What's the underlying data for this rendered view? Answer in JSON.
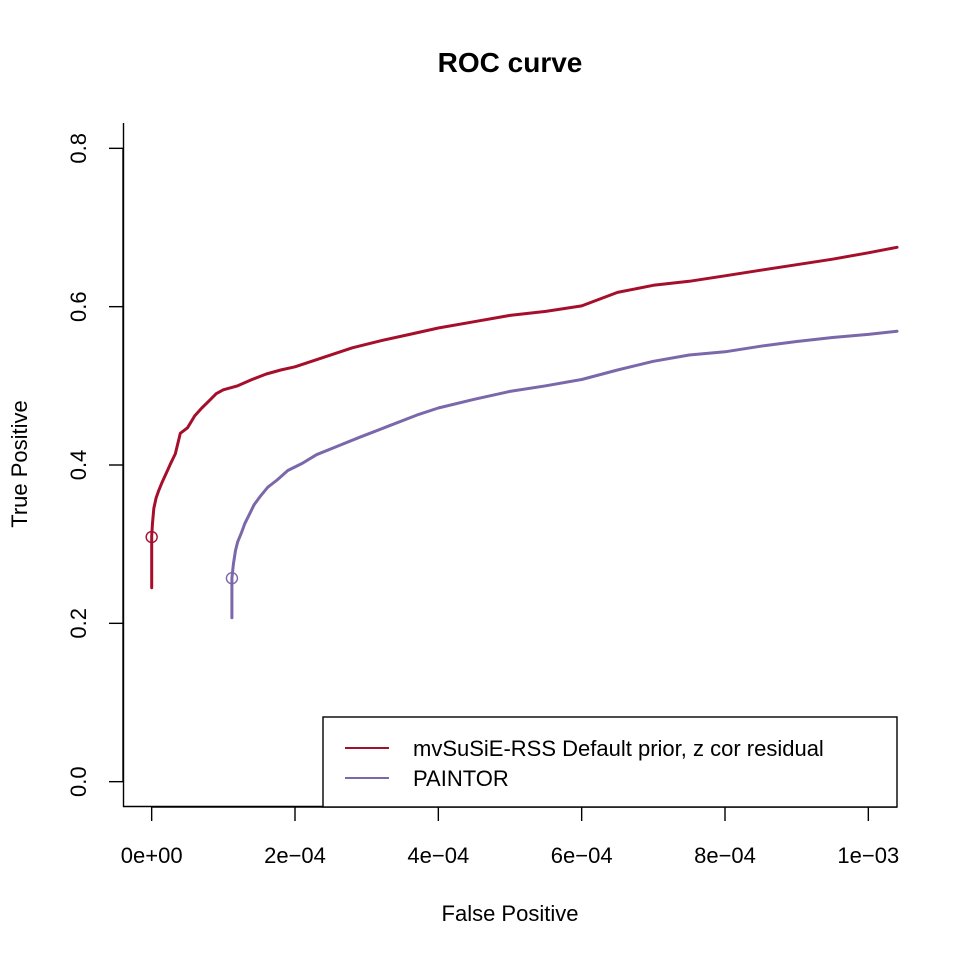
{
  "chart_data": {
    "type": "line",
    "title": "ROC curve",
    "xlabel": "False Positive",
    "ylabel": "True Positive",
    "xlim": [
      -4e-05,
      0.00104
    ],
    "ylim": [
      -0.032,
      0.832
    ],
    "xticks": [
      0,
      0.0002,
      0.0004,
      0.0006,
      0.0008,
      0.001
    ],
    "xtick_labels": [
      "0e+00",
      "2e−04",
      "4e−04",
      "6e−04",
      "8e−04",
      "1e−03"
    ],
    "yticks": [
      0.0,
      0.2,
      0.4,
      0.6,
      0.8
    ],
    "ytick_labels": [
      "0.0",
      "0.2",
      "0.4",
      "0.6",
      "0.8"
    ],
    "grid": false,
    "legend_position": "bottom-right",
    "series": [
      {
        "name": "mvSuSiE-RSS Default prior, z cor residual",
        "color": "#A50F2B",
        "x": [
          0,
          0,
          0,
          1e-06,
          3e-06,
          6e-06,
          1e-05,
          1.5e-05,
          2e-05,
          2.6e-05,
          3.3e-05,
          4e-05,
          5e-05,
          6e-05,
          7e-05,
          8e-05,
          9e-05,
          0.0001,
          0.00012,
          0.00014,
          0.00016,
          0.00018,
          0.0002,
          0.00024,
          0.00028,
          0.00032,
          0.00036,
          0.0004,
          0.00045,
          0.0005,
          0.00055,
          0.0006,
          0.00065,
          0.0007,
          0.00075,
          0.0008,
          0.00085,
          0.0009,
          0.00095,
          0.001,
          0.00104
        ],
        "y": [
          0.245,
          0.28,
          0.31,
          0.325,
          0.345,
          0.358,
          0.368,
          0.379,
          0.389,
          0.401,
          0.414,
          0.44,
          0.447,
          0.462,
          0.472,
          0.481,
          0.49,
          0.495,
          0.5,
          0.508,
          0.515,
          0.52,
          0.524,
          0.536,
          0.548,
          0.557,
          0.565,
          0.573,
          0.581,
          0.589,
          0.594,
          0.601,
          0.618,
          0.627,
          0.632,
          0.639,
          0.646,
          0.653,
          0.66,
          0.668,
          0.675
        ]
      },
      {
        "name": "PAINTOR",
        "color": "#7B68AA",
        "x": [
          0.000112,
          0.000112,
          0.000112,
          0.000114,
          0.000117,
          0.00012,
          0.000125,
          0.00013,
          0.000136,
          0.000143,
          0.000152,
          0.000162,
          0.000175,
          0.00019,
          0.00021,
          0.00023,
          0.00026,
          0.00029,
          0.00033,
          0.00037,
          0.0004,
          0.00045,
          0.0005,
          0.00055,
          0.0006,
          0.00065,
          0.0007,
          0.00075,
          0.0008,
          0.00085,
          0.0009,
          0.00095,
          0.001,
          0.00104
        ],
        "y": [
          0.207,
          0.24,
          0.257,
          0.275,
          0.292,
          0.303,
          0.314,
          0.326,
          0.337,
          0.35,
          0.361,
          0.372,
          0.381,
          0.393,
          0.402,
          0.413,
          0.424,
          0.435,
          0.449,
          0.463,
          0.472,
          0.483,
          0.493,
          0.5,
          0.508,
          0.52,
          0.531,
          0.539,
          0.543,
          0.55,
          0.556,
          0.561,
          0.565,
          0.569
        ]
      }
    ],
    "markers": [
      {
        "series": 0,
        "x": 0,
        "y": 0.309
      },
      {
        "series": 1,
        "x": 0.000112,
        "y": 0.257
      }
    ]
  }
}
